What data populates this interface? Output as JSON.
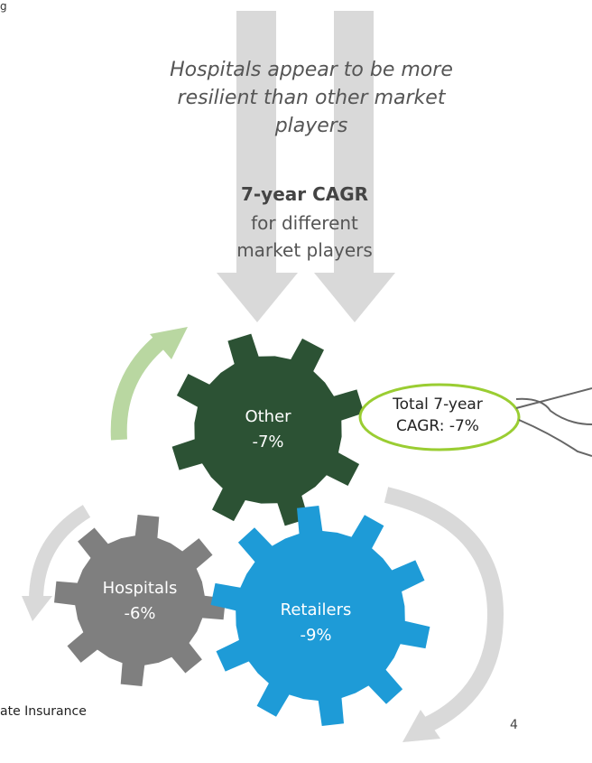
{
  "header_fragment": "g",
  "headline": "Hospitals appear to be more resilient than other market players",
  "center_label": {
    "title": "7-year CAGR",
    "subtitle": "for different market players"
  },
  "gears": [
    {
      "label": "Other",
      "value": "-7%"
    },
    {
      "label": "Hospitals",
      "value": "-6%"
    },
    {
      "label": "Retailers",
      "value": "-9%"
    }
  ],
  "callout": "Total 7-year CAGR:  -7%",
  "footer_fragment": "ate Insurance",
  "page_number": "4"
}
